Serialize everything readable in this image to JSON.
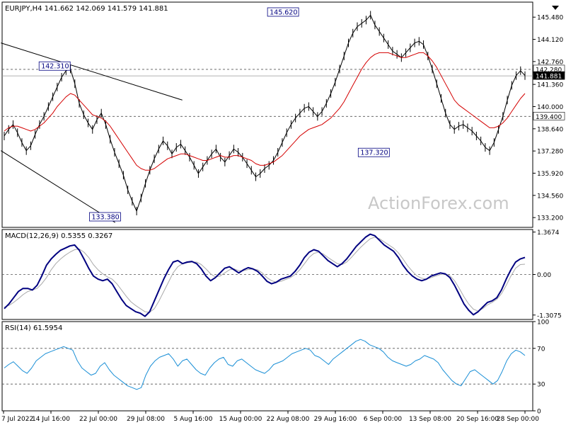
{
  "colors": {
    "background": "#ffffff",
    "frame": "#000000",
    "price": "#000000",
    "ma": "#d40000",
    "macd": "#000080",
    "signal": "#aaaaaa",
    "rsi": "#1a8fd6",
    "trendline": "#000000",
    "dashed": "#555555",
    "watermark": "#c8c8c8"
  },
  "watermark": "ActionForex.com",
  "chart_data": [
    {
      "id": "price",
      "type": "line",
      "title": "EURJPY,H4  141.662 142.069 141.579 141.881",
      "ylim": [
        132.6,
        146.4
      ],
      "y_ticks": [
        133.2,
        134.56,
        135.92,
        137.28,
        138.64,
        140.0,
        141.36,
        142.76,
        144.12,
        145.48
      ],
      "y_tick_labels": [
        "133.200",
        "134.560",
        "135.920",
        "137.280",
        "138.640",
        "140.000",
        "141.360",
        "142.760",
        "144.120",
        "145.480"
      ],
      "x_ticks": [
        "7 Jul 2022",
        "14 Jul 16:00",
        "22 Jul 00:00",
        "29 Jul 08:00",
        "5 Aug 16:00",
        "15 Aug 00:00",
        "22 Aug 08:00",
        "29 Aug 16:00",
        "6 Sep 00:00",
        "13 Sep 08:00",
        "20 Sep 16:00",
        "28 Sep 00:00"
      ],
      "x_range": [
        0,
        155
      ],
      "series": [
        {
          "values": [
            138.2,
            138.6,
            138.9,
            138.4,
            137.8,
            137.3,
            137.6,
            138.3,
            138.9,
            139.4,
            140.0,
            140.6,
            141.2,
            141.8,
            142.2,
            142.3,
            141.4,
            140.2,
            139.5,
            139.0,
            138.6,
            139.2,
            139.6,
            138.9,
            138.0,
            137.2,
            136.5,
            135.8,
            134.9,
            134.2,
            133.6,
            134.4,
            135.3,
            136.1,
            136.8,
            137.4,
            137.9,
            137.6,
            137.1,
            137.5,
            137.7,
            137.3,
            136.9,
            136.4,
            135.9,
            136.3,
            136.7,
            137.1,
            137.4,
            136.9,
            136.6,
            137.0,
            137.4,
            137.2,
            136.9,
            136.5,
            136.1,
            135.7,
            135.9,
            136.2,
            136.4,
            136.7,
            137.2,
            137.8,
            138.4,
            138.9,
            139.3,
            139.6,
            139.9,
            140.0,
            139.7,
            139.4,
            139.7,
            140.2,
            140.8,
            141.5,
            142.3,
            143.1,
            143.9,
            144.5,
            144.9,
            145.1,
            145.3,
            145.6,
            145.0,
            144.6,
            144.2,
            143.8,
            143.4,
            143.2,
            143.0,
            143.3,
            143.6,
            143.9,
            144.0,
            143.8,
            143.1,
            142.3,
            141.4,
            140.5,
            139.6,
            138.9,
            138.6,
            138.8,
            138.9,
            138.7,
            138.5,
            138.2,
            137.9,
            137.5,
            137.3,
            137.8,
            138.6,
            139.4,
            140.4,
            141.3,
            141.9,
            142.2,
            141.9
          ]
        },
        {
          "values": [
            138.5,
            138.7,
            138.8,
            138.8,
            138.7,
            138.6,
            138.5,
            138.6,
            138.8,
            139.0,
            139.3,
            139.6,
            140.0,
            140.3,
            140.6,
            140.8,
            140.7,
            140.4,
            140.1,
            139.8,
            139.5,
            139.4,
            139.3,
            139.1,
            138.8,
            138.4,
            138.0,
            137.6,
            137.2,
            136.8,
            136.4,
            136.2,
            136.1,
            136.1,
            136.2,
            136.4,
            136.6,
            136.8,
            136.9,
            137.0,
            137.1,
            137.1,
            137.0,
            136.9,
            136.8,
            136.7,
            136.7,
            136.8,
            136.9,
            137.0,
            136.9,
            136.9,
            137.0,
            137.0,
            136.9,
            136.8,
            136.7,
            136.5,
            136.4,
            136.4,
            136.5,
            136.6,
            136.8,
            137.0,
            137.3,
            137.6,
            137.9,
            138.2,
            138.4,
            138.6,
            138.7,
            138.8,
            138.9,
            139.1,
            139.3,
            139.6,
            139.9,
            140.3,
            140.8,
            141.3,
            141.8,
            142.3,
            142.7,
            143.0,
            143.2,
            143.3,
            143.3,
            143.3,
            143.2,
            143.1,
            143.0,
            143.0,
            143.1,
            143.2,
            143.3,
            143.3,
            143.1,
            142.8,
            142.4,
            141.9,
            141.4,
            140.9,
            140.4,
            140.1,
            139.9,
            139.7,
            139.5,
            139.3,
            139.1,
            138.9,
            138.7,
            138.7,
            138.8,
            139.0,
            139.3,
            139.7,
            140.1,
            140.5,
            140.8
          ]
        }
      ],
      "annotations": [
        {
          "label": "142.310",
          "x": 15,
          "y": 142.31
        },
        {
          "label": "133.380",
          "x": 30,
          "y": 133.38
        },
        {
          "label": "145.620",
          "x": 83,
          "y": 145.62
        },
        {
          "label": "137.320",
          "x": 110,
          "y": 137.32
        }
      ],
      "hlines": [
        {
          "y": 142.28,
          "label": "142.280",
          "style": "dashed"
        },
        {
          "y": 141.881,
          "label": "141.881",
          "style": "solid-current"
        },
        {
          "y": 139.4,
          "label": "139.400",
          "style": "dashed"
        }
      ],
      "trendlines": [
        {
          "x1": -1,
          "y1": 143.9,
          "x2": 53,
          "y2": 140.4
        },
        {
          "x1": -1,
          "y1": 137.3,
          "x2": 33,
          "y2": 132.9
        }
      ]
    },
    {
      "id": "macd",
      "type": "line",
      "title": "MACD(12,26,9) 0.5355 0.3267",
      "ylim": [
        -1.45,
        1.45
      ],
      "y_ticks": [
        1.3674,
        0.0,
        -1.3075
      ],
      "y_tick_labels": [
        "1.3674",
        "0.00",
        "-1.3075"
      ],
      "zero_label": "0.00",
      "series": [
        {
          "values": [
            -1.1,
            -0.95,
            -0.75,
            -0.55,
            -0.45,
            -0.45,
            -0.5,
            -0.35,
            -0.05,
            0.3,
            0.5,
            0.65,
            0.78,
            0.85,
            0.92,
            0.95,
            0.78,
            0.5,
            0.2,
            -0.05,
            -0.15,
            -0.2,
            -0.15,
            -0.3,
            -0.55,
            -0.8,
            -1.0,
            -1.1,
            -1.2,
            -1.25,
            -1.35,
            -1.2,
            -0.85,
            -0.5,
            -0.15,
            0.15,
            0.4,
            0.45,
            0.35,
            0.4,
            0.42,
            0.35,
            0.18,
            -0.05,
            -0.2,
            -0.1,
            0.05,
            0.2,
            0.25,
            0.15,
            0.05,
            0.15,
            0.22,
            0.18,
            0.1,
            -0.05,
            -0.22,
            -0.3,
            -0.25,
            -0.15,
            -0.1,
            -0.05,
            0.1,
            0.3,
            0.55,
            0.72,
            0.8,
            0.75,
            0.6,
            0.45,
            0.35,
            0.25,
            0.35,
            0.5,
            0.7,
            0.9,
            1.05,
            1.2,
            1.3,
            1.25,
            1.1,
            0.95,
            0.85,
            0.75,
            0.55,
            0.3,
            0.1,
            -0.05,
            -0.15,
            -0.2,
            -0.15,
            -0.05,
            0.0,
            0.05,
            0.02,
            -0.1,
            -0.35,
            -0.65,
            -0.95,
            -1.15,
            -1.3,
            -1.2,
            -1.05,
            -0.9,
            -0.85,
            -0.75,
            -0.5,
            -0.15,
            0.15,
            0.4,
            0.5,
            0.55
          ]
        },
        {
          "values": [
            -1.05,
            -1.0,
            -0.9,
            -0.78,
            -0.65,
            -0.55,
            -0.5,
            -0.45,
            -0.3,
            -0.1,
            0.15,
            0.35,
            0.5,
            0.62,
            0.72,
            0.8,
            0.82,
            0.72,
            0.55,
            0.32,
            0.15,
            0.02,
            -0.08,
            -0.15,
            -0.3,
            -0.5,
            -0.7,
            -0.88,
            -1.0,
            -1.1,
            -1.2,
            -1.22,
            -1.1,
            -0.85,
            -0.55,
            -0.25,
            0.05,
            0.25,
            0.35,
            0.38,
            0.4,
            0.4,
            0.32,
            0.18,
            0.02,
            -0.08,
            -0.05,
            0.05,
            0.15,
            0.18,
            0.12,
            0.12,
            0.16,
            0.18,
            0.15,
            0.05,
            -0.1,
            -0.2,
            -0.25,
            -0.22,
            -0.16,
            -0.1,
            0.0,
            0.15,
            0.35,
            0.55,
            0.68,
            0.72,
            0.66,
            0.55,
            0.45,
            0.35,
            0.32,
            0.4,
            0.55,
            0.72,
            0.88,
            1.02,
            1.15,
            1.2,
            1.15,
            1.05,
            0.95,
            0.85,
            0.7,
            0.5,
            0.28,
            0.1,
            -0.05,
            -0.12,
            -0.15,
            -0.1,
            -0.05,
            0.0,
            0.02,
            -0.04,
            -0.2,
            -0.45,
            -0.72,
            -0.95,
            -1.12,
            -1.18,
            -1.1,
            -0.98,
            -0.9,
            -0.8,
            -0.62,
            -0.35,
            -0.05,
            0.2,
            0.32,
            0.33
          ]
        }
      ]
    },
    {
      "id": "rsi",
      "type": "line",
      "title": "RSI(14) 61.5954",
      "ylim": [
        0,
        100
      ],
      "y_ticks": [
        100,
        70,
        30,
        0
      ],
      "y_tick_labels": [
        "100",
        "70",
        "30",
        "0"
      ],
      "levels": [
        70,
        30
      ],
      "series": [
        {
          "values": [
            48,
            52,
            55,
            50,
            45,
            42,
            48,
            56,
            60,
            64,
            66,
            68,
            70,
            72,
            70,
            68,
            56,
            48,
            44,
            40,
            42,
            50,
            54,
            46,
            40,
            36,
            32,
            28,
            26,
            24,
            26,
            40,
            50,
            56,
            60,
            62,
            64,
            58,
            50,
            56,
            58,
            52,
            46,
            42,
            40,
            48,
            54,
            58,
            60,
            52,
            50,
            56,
            58,
            54,
            50,
            46,
            44,
            42,
            46,
            52,
            54,
            56,
            60,
            64,
            66,
            68,
            70,
            68,
            62,
            60,
            56,
            52,
            58,
            62,
            66,
            70,
            74,
            78,
            80,
            78,
            74,
            72,
            70,
            66,
            60,
            56,
            54,
            52,
            50,
            52,
            56,
            58,
            62,
            60,
            58,
            54,
            46,
            40,
            34,
            30,
            28,
            36,
            44,
            46,
            42,
            38,
            34,
            30,
            34,
            44,
            56,
            64,
            68,
            66,
            62
          ]
        }
      ]
    }
  ]
}
